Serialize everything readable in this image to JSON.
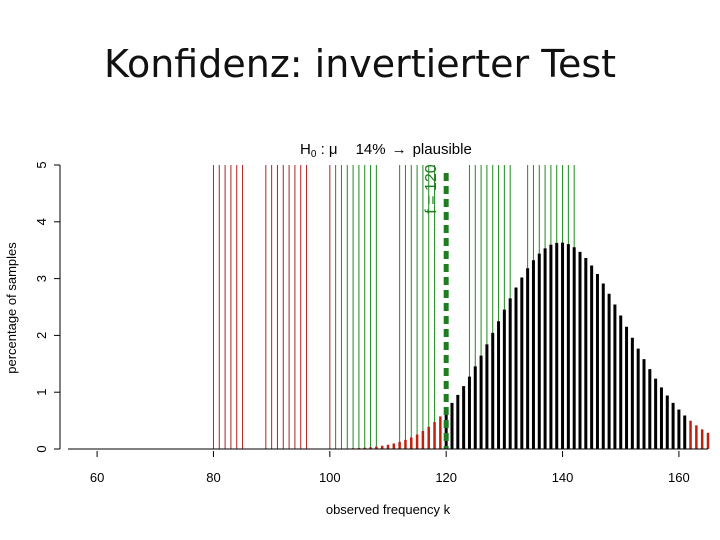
{
  "slide": {
    "title": "Konfidenz: invertierter Test"
  },
  "chart_data": {
    "type": "bar",
    "plot_title_parts": [
      "H",
      "0",
      " : μ",
      "14%",
      "→",
      "plausible"
    ],
    "xlabel": "observed frequency k",
    "ylabel": "percentage of samples",
    "xlim": [
      55,
      165
    ],
    "ylim": [
      0,
      5
    ],
    "xticks": [
      60,
      80,
      100,
      120,
      140,
      160
    ],
    "yticks": [
      0,
      1,
      2,
      3,
      4,
      5
    ],
    "marker": {
      "label": "f = 120",
      "x": 120,
      "color": "#1e7d1e"
    },
    "colors": {
      "observed": "#000000",
      "tail": "#c0200e",
      "rejected_mu": "#b22222",
      "plausible_mu": "#228b22"
    },
    "rejected_mu_values": [
      80,
      81,
      82,
      83,
      84,
      85,
      89,
      90,
      91,
      92,
      93,
      94,
      95,
      96,
      100
    ],
    "plausible_mu_values": [
      101,
      102,
      103,
      104,
      105,
      106,
      107,
      108,
      112,
      113,
      114,
      115,
      116,
      117,
      118,
      124,
      125,
      126,
      127,
      128,
      129,
      130,
      131,
      134,
      135,
      136,
      137,
      138,
      139,
      140,
      141,
      142
    ],
    "binomial": {
      "n": 1000,
      "p": 0.14,
      "k_start": 55,
      "k_end": 165,
      "black_from": 120,
      "upper_tail_from": 162
    }
  }
}
